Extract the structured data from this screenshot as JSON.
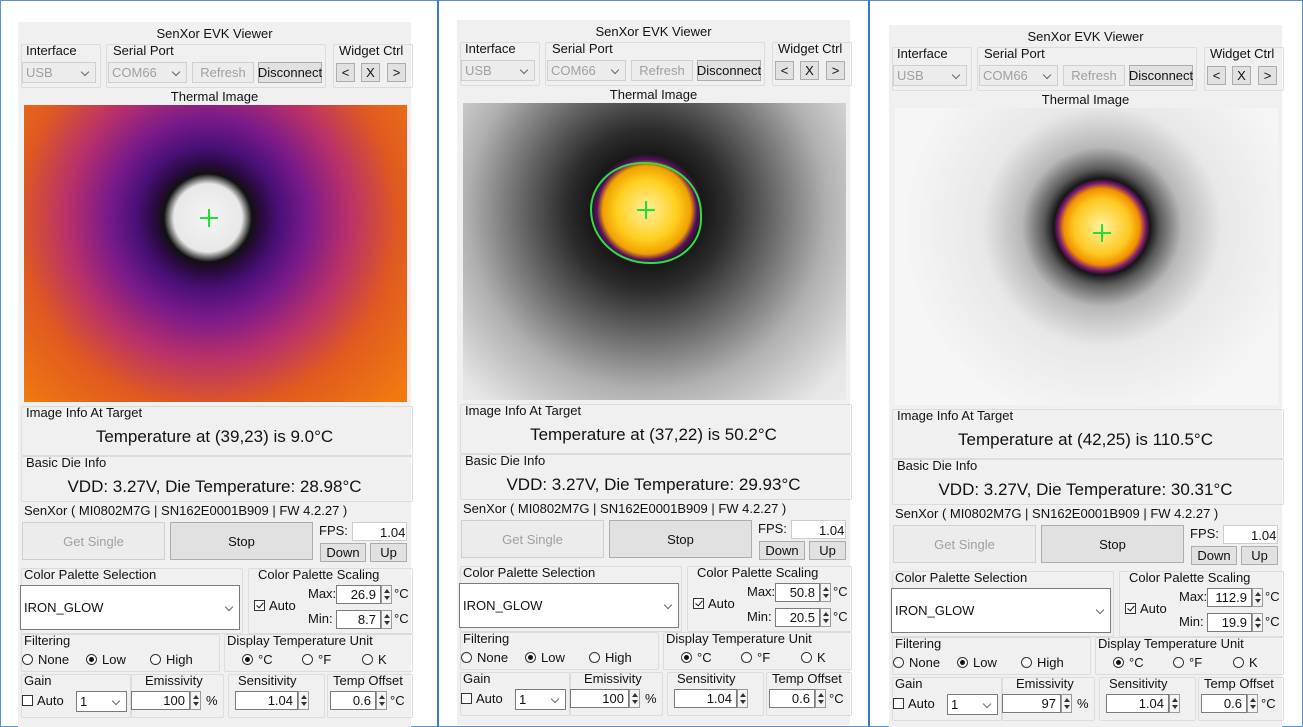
{
  "panels": [
    {
      "title": "SenXor EVK Viewer",
      "interface_label": "Interface",
      "interface_value": "USB",
      "serial_label": "Serial Port",
      "serial_value": "COM66",
      "refresh": "Refresh",
      "disconnect": "Disconnect",
      "widget_label": "Widget Ctrl",
      "widget_buttons": [
        "<",
        "X",
        ">"
      ],
      "thermal_label": "Thermal Image",
      "image_info_label": "Image Info At Target",
      "temperature_text": "Temperature at (39,23) is 9.0°C",
      "die_info_label": "Basic Die Info",
      "die_text": "VDD: 3.27V, Die Temperature: 28.98°C",
      "device_text": "SenXor ( MI0802M7G | SN162E0001B909 | FW 4.2.27 )",
      "get_single": "Get Single",
      "stop": "Stop",
      "fps_label": "FPS:",
      "fps_value": "1.04",
      "down": "Down",
      "up": "Up",
      "palette_label": "Color Palette Selection",
      "palette_value": "IRON_GLOW",
      "scaling_label": "Color Palette Scaling",
      "scaling_auto": {
        "label": "Auto",
        "checked": true
      },
      "max_label": "Max:",
      "max_value": "26.9",
      "max_unit": "°C",
      "min_label": "Min:",
      "min_value": "8.7",
      "min_unit": "°C",
      "filtering_label": "Filtering",
      "filter_options": [
        {
          "label": "None",
          "checked": false
        },
        {
          "label": "Low",
          "checked": true
        },
        {
          "label": "High",
          "checked": false
        }
      ],
      "unit_label": "Display Temperature Unit",
      "unit_options": [
        {
          "label": "°C",
          "checked": true
        },
        {
          "label": "°F",
          "checked": false
        },
        {
          "label": "K",
          "checked": false
        }
      ],
      "gain_label": "Gain",
      "gain_auto": {
        "label": "Auto",
        "checked": false
      },
      "gain_value": "1",
      "emissivity_label": "Emissivity",
      "emissivity_value": "100",
      "emissivity_unit": "%",
      "sensitivity_label": "Sensitivity",
      "sensitivity_value": "1.04",
      "offset_label": "Temp Offset",
      "offset_value": "0.6",
      "offset_unit": "°C"
    },
    {
      "title": "SenXor EVK Viewer",
      "interface_label": "Interface",
      "interface_value": "USB",
      "serial_label": "Serial Port",
      "serial_value": "COM66",
      "refresh": "Refresh",
      "disconnect": "Disconnect",
      "widget_label": "Widget Ctrl",
      "widget_buttons": [
        "<",
        "X",
        ">"
      ],
      "thermal_label": "Thermal Image",
      "image_info_label": "Image Info At Target",
      "temperature_text": "Temperature at (37,22) is 50.2°C",
      "die_info_label": "Basic Die Info",
      "die_text": "VDD: 3.27V, Die Temperature: 29.93°C",
      "device_text": "SenXor ( MI0802M7G | SN162E0001B909 | FW 4.2.27 )",
      "get_single": "Get Single",
      "stop": "Stop",
      "fps_label": "FPS:",
      "fps_value": "1.04",
      "down": "Down",
      "up": "Up",
      "palette_label": "Color Palette Selection",
      "palette_value": "IRON_GLOW",
      "scaling_label": "Color Palette Scaling",
      "scaling_auto": {
        "label": "Auto",
        "checked": true
      },
      "max_label": "Max:",
      "max_value": "50.8",
      "max_unit": "°C",
      "min_label": "Min:",
      "min_value": "20.5",
      "min_unit": "°C",
      "filtering_label": "Filtering",
      "filter_options": [
        {
          "label": "None",
          "checked": false
        },
        {
          "label": "Low",
          "checked": true
        },
        {
          "label": "High",
          "checked": false
        }
      ],
      "unit_label": "Display Temperature Unit",
      "unit_options": [
        {
          "label": "°C",
          "checked": true
        },
        {
          "label": "°F",
          "checked": false
        },
        {
          "label": "K",
          "checked": false
        }
      ],
      "gain_label": "Gain",
      "gain_auto": {
        "label": "Auto",
        "checked": false
      },
      "gain_value": "1",
      "emissivity_label": "Emissivity",
      "emissivity_value": "100",
      "emissivity_unit": "%",
      "sensitivity_label": "Sensitivity",
      "sensitivity_value": "1.04",
      "offset_label": "Temp Offset",
      "offset_value": "0.6",
      "offset_unit": "°C"
    },
    {
      "title": "SenXor EVK Viewer",
      "interface_label": "Interface",
      "interface_value": "USB",
      "serial_label": "Serial Port",
      "serial_value": "COM66",
      "refresh": "Refresh",
      "disconnect": "Disconnect",
      "widget_label": "Widget Ctrl",
      "widget_buttons": [
        "<",
        "X",
        ">"
      ],
      "thermal_label": "Thermal Image",
      "image_info_label": "Image Info At Target",
      "temperature_text": "Temperature at (42,25) is 110.5°C",
      "die_info_label": "Basic Die Info",
      "die_text": "VDD: 3.27V, Die Temperature: 30.31°C",
      "device_text": "SenXor ( MI0802M7G | SN162E0001B909 | FW 4.2.27 )",
      "get_single": "Get Single",
      "stop": "Stop",
      "fps_label": "FPS:",
      "fps_value": "1.04",
      "down": "Down",
      "up": "Up",
      "palette_label": "Color Palette Selection",
      "palette_value": "IRON_GLOW",
      "scaling_label": "Color Palette Scaling",
      "scaling_auto": {
        "label": "Auto",
        "checked": true
      },
      "max_label": "Max:",
      "max_value": "112.9",
      "max_unit": "°C",
      "min_label": "Min:",
      "min_value": "19.9",
      "min_unit": "°C",
      "filtering_label": "Filtering",
      "filter_options": [
        {
          "label": "None",
          "checked": false
        },
        {
          "label": "Low",
          "checked": true
        },
        {
          "label": "High",
          "checked": false
        }
      ],
      "unit_label": "Display Temperature Unit",
      "unit_options": [
        {
          "label": "°C",
          "checked": true
        },
        {
          "label": "°F",
          "checked": false
        },
        {
          "label": "K",
          "checked": false
        }
      ],
      "gain_label": "Gain",
      "gain_auto": {
        "label": "Auto",
        "checked": false
      },
      "gain_value": "1",
      "emissivity_label": "Emissivity",
      "emissivity_value": "97",
      "emissivity_unit": "%",
      "sensitivity_label": "Sensitivity",
      "sensitivity_value": "1.04",
      "offset_label": "Temp Offset",
      "offset_value": "0.6",
      "offset_unit": "°C"
    }
  ]
}
